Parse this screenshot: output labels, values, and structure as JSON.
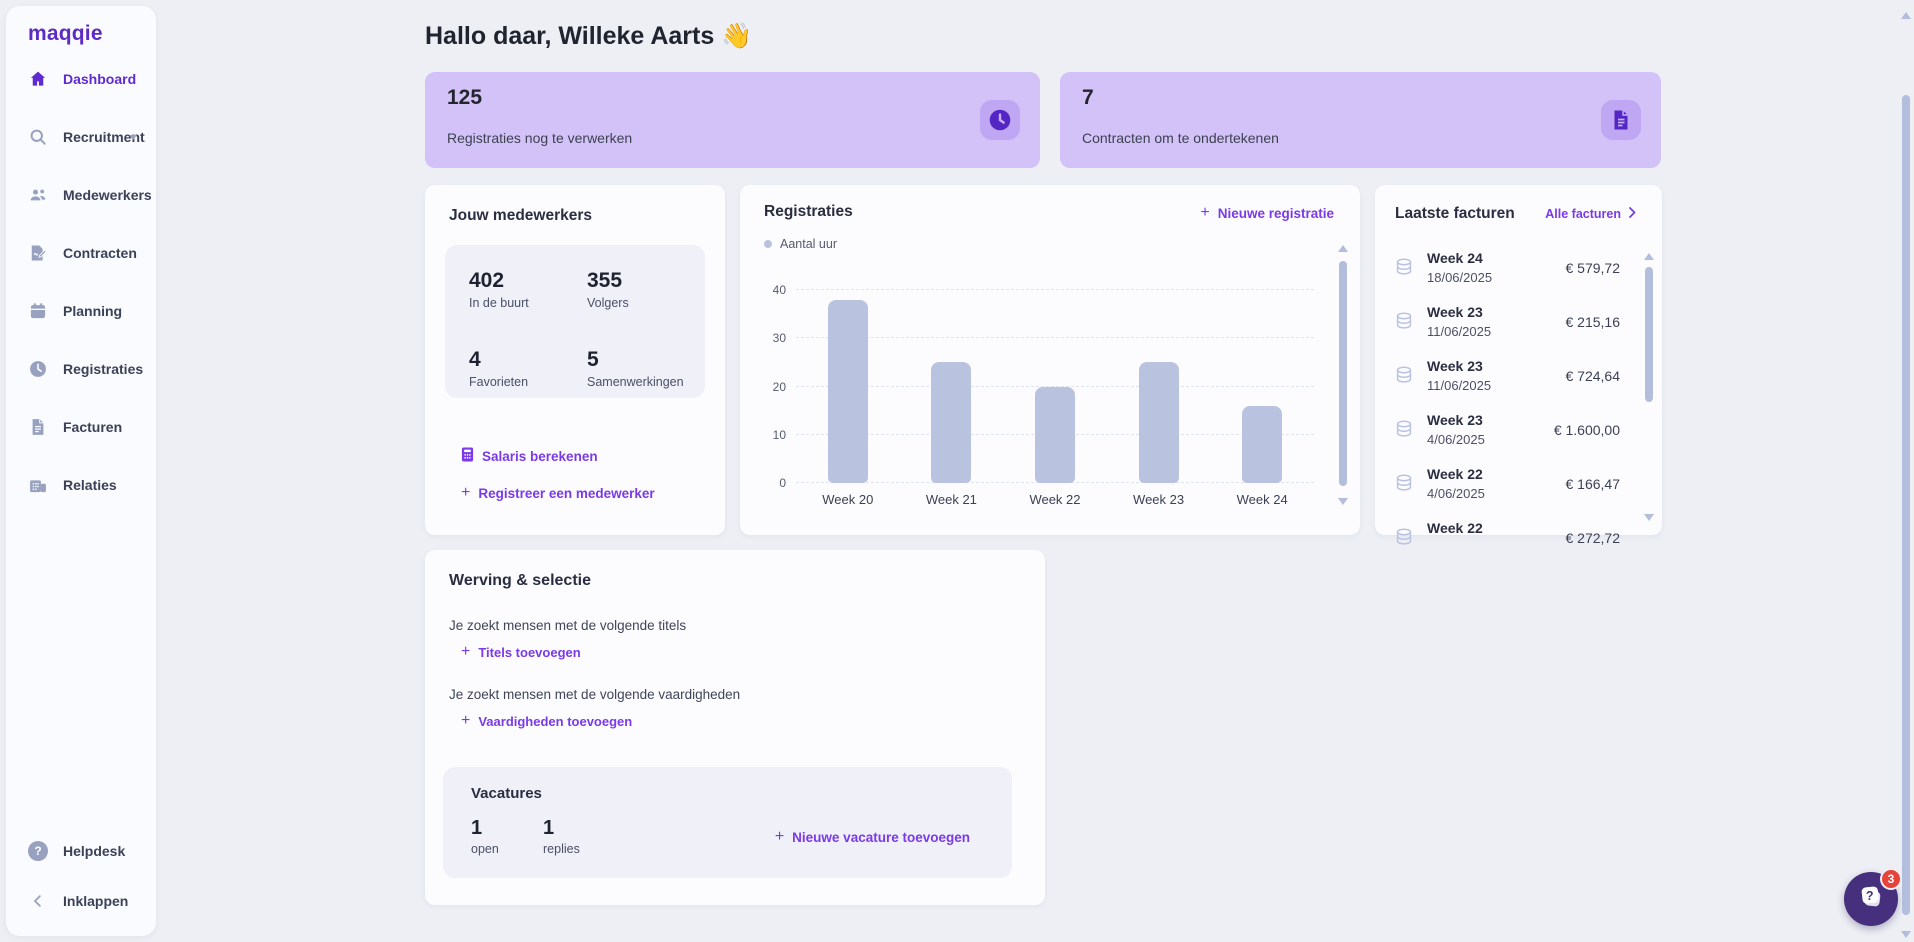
{
  "brand": {
    "logo_text": "maqqie"
  },
  "sidebar": {
    "items": [
      {
        "label": "Dashboard",
        "icon": "home-icon",
        "active": true
      },
      {
        "label": "Recruitment",
        "icon": "search-icon",
        "has_submenu": true
      },
      {
        "label": "Medewerkers",
        "icon": "users-icon"
      },
      {
        "label": "Contracten",
        "icon": "contract-icon"
      },
      {
        "label": "Planning",
        "icon": "calendar-icon"
      },
      {
        "label": "Registraties",
        "icon": "clock-icon"
      },
      {
        "label": "Facturen",
        "icon": "invoice-icon"
      },
      {
        "label": "Relaties",
        "icon": "building-icon"
      }
    ],
    "footer_items": [
      {
        "label": "Helpdesk",
        "icon": "question-icon"
      },
      {
        "label": "Inklappen",
        "icon": "chevron-left-icon"
      }
    ]
  },
  "header": {
    "greeting": "Hallo daar, Willeke Aarts 👋"
  },
  "stat_cards": [
    {
      "value": "125",
      "label": "Registraties nog te verwerken",
      "icon": "clock-icon"
    },
    {
      "value": "7",
      "label": "Contracten om te ondertekenen",
      "icon": "document-icon"
    }
  ],
  "employees_card": {
    "title": "Jouw medewerkers",
    "stats": [
      {
        "value": "402",
        "label": "In de buurt"
      },
      {
        "value": "355",
        "label": "Volgers"
      },
      {
        "value": "4",
        "label": "Favorieten"
      },
      {
        "value": "5",
        "label": "Samenwerkingen"
      }
    ],
    "salary_link": "Salaris berekenen",
    "register_link": "Registreer een medewerker"
  },
  "registrations_card": {
    "title": "Registraties",
    "new_link": "Nieuwe registratie",
    "legend": "Aantal uur"
  },
  "chart_data": {
    "type": "bar",
    "title": "Registraties",
    "series_name": "Aantal uur",
    "categories": [
      "Week 20",
      "Week 21",
      "Week 22",
      "Week 23",
      "Week 24"
    ],
    "values": [
      38,
      25,
      20,
      25,
      16
    ],
    "xlabel": "",
    "ylabel": "",
    "ylim": [
      0,
      40
    ],
    "yticks": [
      0,
      10,
      20,
      30,
      40
    ],
    "grid": "horizontal-dashed",
    "legend_position": "top-left",
    "bar_color": "#b9c2df"
  },
  "invoices_card": {
    "title": "Laatste facturen",
    "all_link": "Alle facturen",
    "rows": [
      {
        "week": "Week 24",
        "date": "18/06/2025",
        "amount": "€ 579,72"
      },
      {
        "week": "Week 23",
        "date": "11/06/2025",
        "amount": "€ 215,16"
      },
      {
        "week": "Week 23",
        "date": "11/06/2025",
        "amount": "€ 724,64"
      },
      {
        "week": "Week 23",
        "date": "4/06/2025",
        "amount": "€ 1.600,00"
      },
      {
        "week": "Week 22",
        "date": "4/06/2025",
        "amount": "€ 166,47"
      },
      {
        "week": "Week 22",
        "date": "",
        "amount": "€ 272,72"
      }
    ]
  },
  "recruitment_card": {
    "title": "Werving & selectie",
    "titles_label": "Je zoekt mensen met de volgende titels",
    "titles_link": "Titels toevoegen",
    "skills_label": "Je zoekt mensen met de volgende vaardigheden",
    "skills_link": "Vaardigheden toevoegen",
    "vacancies": {
      "title": "Vacatures",
      "open_value": "1",
      "open_label": "open",
      "replies_value": "1",
      "replies_label": "replies",
      "new_link": "Nieuwe vacature toevoegen"
    }
  },
  "chat_widget": {
    "badge": "3"
  },
  "colors": {
    "accent_link": "#7a3ae8",
    "sidebar_active": "#5f2ad1",
    "purple_card_bg": "#d3c2f7",
    "chip_bg": "#c0a7f4",
    "chip_icon": "#5426c4",
    "bar": "#b9c2df",
    "badge_red": "#e8433a",
    "fab_bg": "#46307e",
    "scroll_thumb": "#b3bddc",
    "page_bg": "#edeff5"
  }
}
